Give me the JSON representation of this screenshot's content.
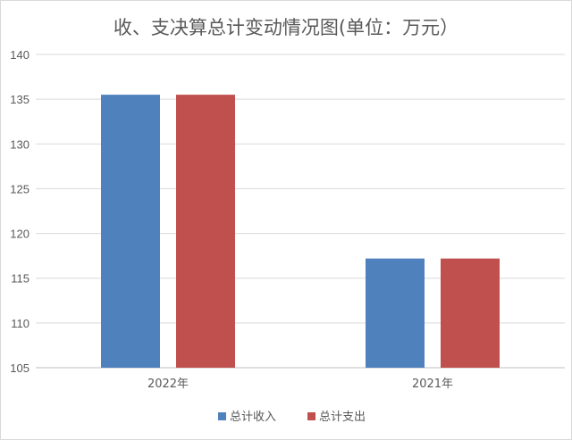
{
  "chart_data": {
    "type": "bar",
    "title": "收、支决算总计变动情况图(单位：万元）",
    "categories": [
      "2022年",
      "2021年"
    ],
    "series": [
      {
        "name": "总计收入",
        "values": [
          135.5,
          117.2
        ],
        "color": "#4f81bd"
      },
      {
        "name": "总计支出",
        "values": [
          135.5,
          117.2
        ],
        "color": "#c0504d"
      }
    ],
    "y_ticks": [
      105,
      110,
      115,
      120,
      125,
      130,
      135,
      140
    ],
    "ylim": [
      105,
      140
    ],
    "grid": true,
    "legend_position": "bottom"
  }
}
